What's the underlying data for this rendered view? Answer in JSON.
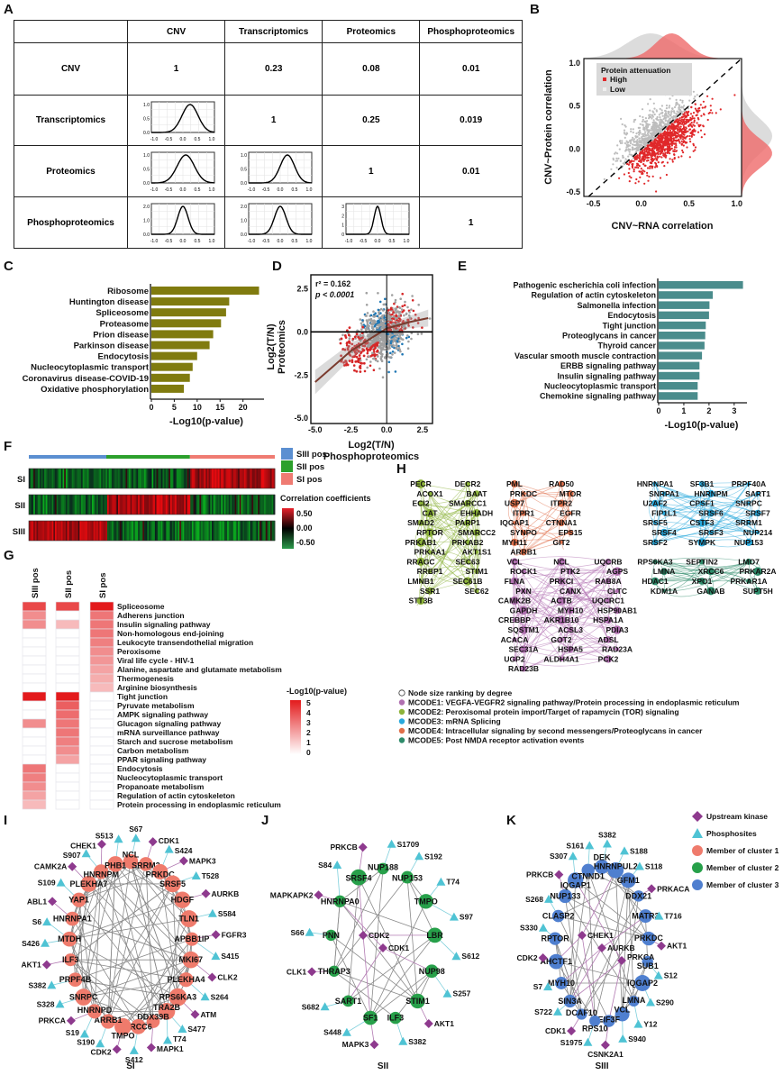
{
  "panel_labels": [
    "A",
    "B",
    "C",
    "D",
    "E",
    "F",
    "G",
    "H",
    "I",
    "J",
    "K"
  ],
  "table_a": {
    "headers": [
      "CNV",
      "Transcriptomics",
      "Proteomics",
      "Phosphoproteomics"
    ],
    "rows": [
      {
        "label": "CNV",
        "cells": [
          "1",
          "0.23",
          "0.08",
          "0.01"
        ]
      },
      {
        "label": "Transcriptomics",
        "cells": [
          "density",
          "1",
          "0.25",
          "0.019"
        ]
      },
      {
        "label": "Proteomics",
        "cells": [
          "density",
          "density",
          "1",
          "0.01"
        ]
      },
      {
        "label": "Phosphoproteomics",
        "cells": [
          "density",
          "density",
          "density",
          "1"
        ]
      }
    ],
    "mini_x_ticks": [
      "-1.0",
      "-0.5",
      "0.0",
      "0.5",
      "1.0"
    ],
    "densities": [
      {
        "row": 1,
        "col": 0,
        "mean": 0.25,
        "sd": 0.28,
        "yticks": [
          "0.0",
          "0.5",
          "1.0"
        ]
      },
      {
        "row": 2,
        "col": 0,
        "mean": 0.1,
        "sd": 0.3,
        "yticks": [
          "0.0",
          "0.5",
          "1.0"
        ]
      },
      {
        "row": 2,
        "col": 1,
        "mean": 0.25,
        "sd": 0.25,
        "yticks": [
          "0.0",
          "0.5",
          "1.0"
        ]
      },
      {
        "row": 3,
        "col": 0,
        "mean": 0.0,
        "sd": 0.18,
        "yticks": [
          "0.0",
          "1.0",
          "2.0"
        ]
      },
      {
        "row": 3,
        "col": 1,
        "mean": 0.0,
        "sd": 0.2,
        "yticks": [
          "0.0",
          "1.0",
          "2.0"
        ]
      },
      {
        "row": 3,
        "col": 2,
        "mean": 0.0,
        "sd": 0.12,
        "yticks": [
          "0",
          "1",
          "2",
          "3"
        ]
      }
    ]
  },
  "chart_data": [
    {
      "id": "B",
      "type": "scatter",
      "xlabel": "CNV~RNA correlation",
      "ylabel": "CNV~Protein correlation",
      "xlim": [
        -0.6,
        1.05
      ],
      "ylim": [
        -0.55,
        1.05
      ],
      "xticks": [
        "-0.5",
        "0.0",
        "0.5",
        "1.0"
      ],
      "yticks": [
        "-0.5",
        "0.0",
        "0.5",
        "1.0"
      ],
      "reference_line": "y = x (dashed)",
      "legend": {
        "title": "Protein attenuation",
        "items": [
          "High",
          "Low"
        ],
        "placement": "top-left"
      },
      "series": [
        {
          "name": "High",
          "color": "#e0282a",
          "x_mean": 0.33,
          "y_mean": -0.05,
          "rule": "below diagonal"
        },
        {
          "name": "Low",
          "color": "#bdbdbd",
          "x_mean": 0.1,
          "y_mean": 0.15,
          "rule": "above diagonal"
        }
      ]
    },
    {
      "id": "C",
      "type": "bar",
      "orientation": "horizontal",
      "categories": [
        "Ribosome",
        "Huntington disease",
        "Spliceosome",
        "Proteasome",
        "Prion disease",
        "Parkinson disease",
        "Endocytosis",
        "Nucleocytoplasmic transport",
        "Coronavirus disease-COVID-19",
        "Oxidative phosphorylation"
      ],
      "values": [
        23.5,
        17.0,
        16.3,
        15.2,
        13.5,
        12.7,
        10.0,
        9.0,
        8.4,
        7.1
      ],
      "xlabel": "-Log10(p-value)",
      "xlim": [
        0,
        24
      ],
      "xticks": [
        "0",
        "5",
        "10",
        "15",
        "20"
      ],
      "color": "#807b0f"
    },
    {
      "id": "D",
      "type": "scatter",
      "xlabel": "Log2(T/N)",
      "xlabel2": "Phosphoproteomics",
      "ylabel": "Log2(T/N)",
      "ylabel2": "Proteomics",
      "xlim": [
        -5.3,
        3.2
      ],
      "ylim": [
        -5.3,
        3.3
      ],
      "xticks": [
        "-5.0",
        "-2.5",
        "0.0",
        "2.5"
      ],
      "yticks": [
        "-5.0",
        "-2.5",
        "0.0",
        "2.5"
      ],
      "annotation": [
        "r² = 0.162",
        "p < 0.0001"
      ],
      "fit": {
        "x": [
          -5,
          -2.5,
          0,
          1.5,
          2.9
        ],
        "y": [
          -2.9,
          -1.1,
          0.2,
          0.55,
          0.8
        ]
      },
      "colors": {
        "concordant": "#d62728",
        "discordant": "#1f77b4",
        "other": "#a0a0a0",
        "fit": "#7a3b2e"
      }
    },
    {
      "id": "E",
      "type": "bar",
      "orientation": "horizontal",
      "categories": [
        "Pathogenic escherichia coli infection",
        "Regulation of actin cytoskeleton",
        "Salmonella infection",
        "Endocytosis",
        "Tight junction",
        "Proteoglycans in cancer",
        "Thyroid cancer",
        "Vascular smooth muscle contraction",
        "ERBB signaling pathway",
        "Insulin signaling pathway",
        "Nucleocytoplasmic transport",
        "Chemokine signaling pathway"
      ],
      "values": [
        3.35,
        2.15,
        2.02,
        2.0,
        1.87,
        1.85,
        1.82,
        1.72,
        1.62,
        1.62,
        1.55,
        1.55
      ],
      "xlabel": "-Log10(p-value)",
      "xlim": [
        0,
        3.4
      ],
      "xticks": [
        "0",
        "1",
        "2",
        "3"
      ],
      "color": "#4a8c8c"
    },
    {
      "id": "F",
      "type": "heatmap",
      "rows": [
        "SI",
        "SII",
        "SIII"
      ],
      "column_groups": [
        {
          "name": "SIII pos",
          "color": "#5b8fd1"
        },
        {
          "name": "SII pos",
          "color": "#2ca02c"
        },
        {
          "name": "SI pos",
          "color": "#ef7b72"
        }
      ],
      "legend_title": "Correlation coefficients",
      "scale": [
        "0.50",
        "0.00",
        "-0.50"
      ],
      "pattern": "each row positive (red) within its own group, negative (green) elsewhere"
    },
    {
      "id": "G",
      "type": "heatmap",
      "columns": [
        "SIII pos",
        "SII pos",
        "SI pos"
      ],
      "rows": [
        "Spliceosome",
        "Adherens junction",
        "Insulin signaling pathway",
        "Non-homologous end-joining",
        "Leukocyte transendothelial migration",
        "Peroxisome",
        "Viral life cycle - HIV-1",
        "Alanine, aspartate and glutamate metabolism",
        "Thermogenesis",
        "Arginine biosynthesis",
        "Tight junction",
        "Pyruvate metabolism",
        "AMPK signaling pathway",
        "Glucagon signaling pathway",
        "mRNA surveillance pathway",
        "Starch and sucrose metabolism",
        "Carbon metabolism",
        "PPAR signaling pathway",
        "Endocytosis",
        "Nucleocytoplasmic transport",
        "Propanoate metabolism",
        "Regulation of actin cytoskeleton",
        "Protein processing in endoplasmic reticulum"
      ],
      "values": [
        [
          4,
          4,
          5
        ],
        [
          2.5,
          0,
          3
        ],
        [
          2.5,
          1.5,
          3
        ],
        [
          0,
          0,
          3
        ],
        [
          0,
          0,
          2.8
        ],
        [
          0,
          0,
          2.5
        ],
        [
          0,
          0,
          2.3
        ],
        [
          0,
          0,
          2
        ],
        [
          0,
          0,
          1.8
        ],
        [
          0,
          0,
          1.5
        ],
        [
          5,
          5,
          0
        ],
        [
          0,
          3.5,
          0
        ],
        [
          0,
          3.2,
          0
        ],
        [
          2.5,
          3,
          0
        ],
        [
          0,
          3,
          0
        ],
        [
          0,
          2.8,
          0
        ],
        [
          0,
          2.5,
          0
        ],
        [
          0,
          2,
          0
        ],
        [
          3,
          0,
          0
        ],
        [
          2.8,
          0,
          0
        ],
        [
          2.5,
          0,
          0
        ],
        [
          2,
          0,
          0
        ],
        [
          1.5,
          0,
          0
        ]
      ],
      "legend_title": "-Log10(p-value)",
      "scale": [
        "5",
        "4",
        "3",
        "2",
        "1",
        "0"
      ],
      "color_max": "#e31a1c"
    }
  ],
  "network_h": {
    "clusters": [
      {
        "id": "MCODE2",
        "color": "#8db33a",
        "nodes": [
          "PECR",
          "DECR2",
          "ACOX1",
          "BAAT",
          "ECI2",
          "SMARCC1",
          "CAT",
          "EHHADH",
          "SMAD2",
          "PARP1",
          "RPTOR",
          "SMARCC2",
          "PRKAB1",
          "PRKAB2",
          "PRKAA1",
          "AKT1S1",
          "RRAGC",
          "SEC63",
          "RRBP1",
          "STIM1",
          "LMNB1",
          "SEC61B",
          "SSR1",
          "SEC62",
          "STT3B"
        ]
      },
      {
        "id": "MCODE4",
        "color": "#e0704a",
        "nodes": [
          "PML",
          "RAD50",
          "PRKDC",
          "MTOR",
          "USP7",
          "ITPR2",
          "ITPR1",
          "EGFR",
          "IQGAP1",
          "CTNNA1",
          "SYNPO",
          "EPS15",
          "MYH11",
          "GIT2",
          "ARRB1"
        ]
      },
      {
        "id": "MCODE3",
        "color": "#29a9dc",
        "nodes": [
          "HNRNPA1",
          "SF3B1",
          "PRPF40A",
          "SNRPA1",
          "HNRNPM",
          "SART1",
          "U2AF2",
          "CPSF1",
          "SNRPC",
          "FIP1L1",
          "SRSF6",
          "SRSF7",
          "SRSF5",
          "CSTF3",
          "SRRM1",
          "SRSF4",
          "SRSF3",
          "NUP214",
          "SRSF2",
          "SYMPK",
          "NUP153"
        ]
      },
      {
        "id": "MCODE1",
        "color": "#b070b0",
        "nodes": [
          "VCL",
          "NCL",
          "UQCRB",
          "ROCK1",
          "PTK2",
          "AGPS",
          "FLNA",
          "PRKCI",
          "RAB8A",
          "PXN",
          "CANX",
          "CLTC",
          "CAMK2B",
          "ACTB",
          "UQCRC1",
          "GAPDH",
          "MYH10",
          "HSP90AB1",
          "CREBBP",
          "AKR1B10",
          "HSPA1A",
          "SQSTM1",
          "ACSL3",
          "PDIA3",
          "ACACA",
          "GOT2",
          "ADSL",
          "SEC31A",
          "HSPA5",
          "RAD23A",
          "UGP2",
          "ALDH4A1",
          "PCK2",
          "RAD23B"
        ]
      },
      {
        "id": "MCODE5",
        "color": "#2e8b6a",
        "nodes": [
          "RPS6KA3",
          "SEPTIN2",
          "LMO7",
          "LMNA",
          "XRCC6",
          "PRKAR2A",
          "HDAC1",
          "XPO1",
          "PRKAR1A",
          "KDM1A",
          "GANAB",
          "SUPT5H"
        ]
      }
    ],
    "legend": [
      {
        "text": "Node size ranking by degree",
        "color": "#ffffff"
      },
      {
        "text": "MCODE1: VEGFA-VEGFR2 signaling pathway/Protein processing in endoplasmic reticulum",
        "color": "#b070b0"
      },
      {
        "text": "MCODE2: Peroxisomal protein import/Target of rapamycin (TOR) signaling",
        "color": "#8db33a"
      },
      {
        "text": "MCODE3: mRNA Splicing",
        "color": "#29a9dc"
      },
      {
        "text": "MCODE4: Intracellular signaling by second messengers/Proteoglycans in cancer",
        "color": "#e0704a"
      },
      {
        "text": "MCODE5: Post NMDA receptor activation events",
        "color": "#2e8b6a"
      }
    ]
  },
  "kinase_networks": [
    {
      "caption": "SI",
      "member_color": "#ef7b6c",
      "members": [
        "NCL",
        "SRRM2",
        "PRKDC",
        "SRSF5",
        "HDGF",
        "TLN1",
        "APBB1IP",
        "MKI67",
        "PLEKHA4",
        "RPS6KA3",
        "TRA2B",
        "DDX39B",
        "XRCC6",
        "TMPO",
        "ARRB1",
        "HNRNPD",
        "SNRPC",
        "PRPF4B",
        "ILF3",
        "MTDH",
        "HNRNPA1",
        "YAP1",
        "PLEKHA7",
        "HNRNPM",
        "PHB1"
      ],
      "outer": [
        [
          "S67",
          "site"
        ],
        [
          "CDK1",
          "kinase"
        ],
        [
          "S424",
          "site"
        ],
        [
          "MAPK3",
          "kinase"
        ],
        [
          "T528",
          "site"
        ],
        [
          "AURKB",
          "kinase"
        ],
        [
          "S584",
          "site"
        ],
        [
          "FGFR3",
          "kinase"
        ],
        [
          "S415",
          "site"
        ],
        [
          "CLK2",
          "kinase"
        ],
        [
          "S264",
          "site"
        ],
        [
          "ATM",
          "kinase"
        ],
        [
          "S477",
          "site"
        ],
        [
          "T74",
          "site"
        ],
        [
          "MAPK1",
          "kinase"
        ],
        [
          "S412",
          "site"
        ],
        [
          "CDK2",
          "kinase"
        ],
        [
          "S190",
          "site"
        ],
        [
          "S19",
          "site"
        ],
        [
          "PRKCA",
          "kinase"
        ],
        [
          "S328",
          "site"
        ],
        [
          "S382",
          "site"
        ],
        [
          "AKT1",
          "kinase"
        ],
        [
          "S426",
          "site"
        ],
        [
          "S6",
          "site"
        ],
        [
          "ABL1",
          "kinase"
        ],
        [
          "S109",
          "site"
        ],
        [
          "CAMK2A",
          "kinase"
        ],
        [
          "S907",
          "site"
        ],
        [
          "CHEK1",
          "kinase"
        ],
        [
          "S513",
          "site"
        ]
      ],
      "inner": []
    },
    {
      "caption": "SII",
      "member_color": "#27a04a",
      "members": [
        "NUP188",
        "NUP153",
        "TMPO",
        "LBR",
        "NUP98",
        "STIM1",
        "ILF3",
        "SF1",
        "SART1",
        "THRAP3",
        "PNN",
        "HNRNPA0",
        "SRSF4"
      ],
      "outer": [
        [
          "S1709",
          "site"
        ],
        [
          "S192",
          "site"
        ],
        [
          "T74",
          "site"
        ],
        [
          "S97",
          "site"
        ],
        [
          "S612",
          "site"
        ],
        [
          "S257",
          "site"
        ],
        [
          "AKT1",
          "kinase"
        ],
        [
          "S382",
          "site"
        ],
        [
          "MAPK3",
          "kinase"
        ],
        [
          "S448",
          "site"
        ],
        [
          "S682",
          "site"
        ],
        [
          "CLK1",
          "kinase"
        ],
        [
          "S66",
          "site"
        ],
        [
          "MAPKAPK2",
          "kinase"
        ],
        [
          "S84",
          "site"
        ],
        [
          "PRKCB",
          "kinase"
        ]
      ],
      "inner": [
        [
          "CDK2",
          "kinase"
        ],
        [
          "CDK1",
          "kinase"
        ]
      ]
    },
    {
      "caption": "SIII",
      "member_color": "#4f7fcf",
      "members": [
        "DEK",
        "HNRNPUL2",
        "GFM1",
        "DDX21",
        "MATR3",
        "PRKDC",
        "SUB1",
        "IQGAP2",
        "LMNA",
        "VCL",
        "EIF3F",
        "RPS10",
        "DCAF10",
        "SIN3A",
        "MYH10",
        "AHCTF1",
        "RPTOR",
        "CLASP2",
        "NUP133",
        "IQGAP1",
        "CTNND1"
      ],
      "outer": [
        [
          "S382",
          "site"
        ],
        [
          "S188",
          "site"
        ],
        [
          "S118",
          "site"
        ],
        [
          "PRKACA",
          "kinase"
        ],
        [
          "T716",
          "site"
        ],
        [
          "AKT1",
          "kinase"
        ],
        [
          "S12",
          "site"
        ],
        [
          "S290",
          "site"
        ],
        [
          "Y12",
          "site"
        ],
        [
          "S940",
          "site"
        ],
        [
          "CSNK2A1",
          "kinase"
        ],
        [
          "S1975",
          "site"
        ],
        [
          "CDK1",
          "kinase"
        ],
        [
          "S722",
          "site"
        ],
        [
          "S7",
          "site"
        ],
        [
          "CDK2",
          "kinase"
        ],
        [
          "S330",
          "site"
        ],
        [
          "S268",
          "site"
        ],
        [
          "PRKCB",
          "kinase"
        ],
        [
          "S307",
          "site"
        ],
        [
          "S161",
          "site"
        ]
      ],
      "inner": [
        [
          "CHEK1",
          "kinase"
        ],
        [
          "AURKB",
          "kinase"
        ],
        [
          "PRKCA",
          "kinase"
        ]
      ]
    }
  ],
  "kinase_legend": [
    {
      "text": "Upstream kinase",
      "shape": "diamond",
      "color": "#8e3a8e"
    },
    {
      "text": "Phosphosites",
      "shape": "triangle",
      "color": "#4fc3d4"
    },
    {
      "text": "Member of cluster 1",
      "shape": "circle",
      "color": "#ef7b6c"
    },
    {
      "text": "Member of cluster 2",
      "shape": "circle",
      "color": "#27a04a"
    },
    {
      "text": "Member of cluster 3",
      "shape": "circle",
      "color": "#4f7fcf"
    }
  ]
}
